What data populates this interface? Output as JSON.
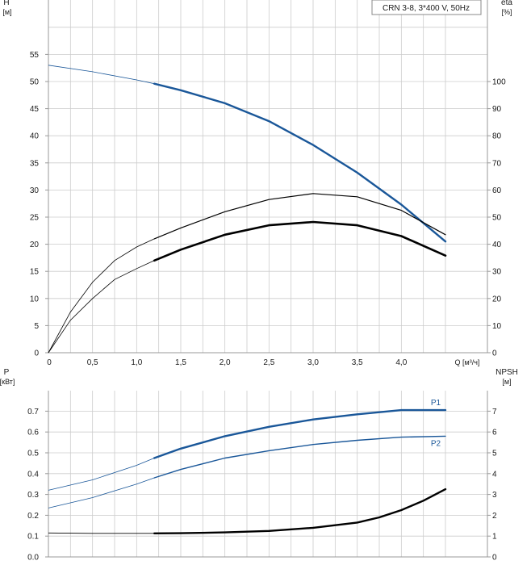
{
  "title_box": "CRN 3-8, 3*400 V, 50Hz",
  "colors": {
    "grid": "#cccccc",
    "frame": "#999999",
    "blue": "#1a5799",
    "black": "#000000",
    "text": "#1a1a1a"
  },
  "chart_data": [
    {
      "type": "line",
      "x_label": "Q [м³/ч]",
      "x_ticks": [
        "0",
        "0,5",
        "1,0",
        "1,5",
        "2,0",
        "2,5",
        "3,0",
        "3,5",
        "4,0"
      ],
      "xlim": [
        0,
        4.5
      ],
      "left_axis": {
        "label_line1": "H",
        "label_line2": "[м]",
        "ylim": [
          0,
          60
        ],
        "ticks": [
          "0",
          "5",
          "10",
          "15",
          "20",
          "25",
          "30",
          "35",
          "40",
          "45",
          "50",
          "55"
        ]
      },
      "right_axis": {
        "label_line1": "eta",
        "label_line2": "[%]",
        "ylim": [
          0,
          120
        ],
        "ticks": [
          "0",
          "10",
          "20",
          "30",
          "40",
          "50",
          "60",
          "70",
          "80",
          "90",
          "100"
        ]
      },
      "grid": true,
      "series": [
        {
          "name": "",
          "axis": "left",
          "color": "blue",
          "x_thin": [
            0,
            0.5,
            1.0,
            1.2
          ],
          "y_thin": [
            53.0,
            51.8,
            50.3,
            49.6
          ],
          "x_bold": [
            1.2,
            1.5,
            2.0,
            2.5,
            3.0,
            3.5,
            4.0,
            4.5
          ],
          "y_bold": [
            49.6,
            48.4,
            46.0,
            42.7,
            38.3,
            33.2,
            27.3,
            20.5
          ]
        },
        {
          "name": "",
          "axis": "right",
          "color": "black",
          "x_thin": [
            0,
            0.25,
            0.5,
            0.75,
            1.0,
            1.2
          ],
          "y_thin": [
            0,
            15,
            26,
            34,
            39,
            42
          ],
          "x_bold": [
            1.2,
            1.5,
            2.0,
            2.5,
            3.0,
            3.5,
            4.0,
            4.5
          ],
          "y_bold": [
            42,
            46,
            52,
            56.5,
            58.7,
            57.5,
            52.5,
            43.5
          ],
          "bold_width": 1.2
        },
        {
          "name": "",
          "axis": "right",
          "color": "black",
          "x_thin": [
            0,
            0.25,
            0.5,
            0.75,
            1.0,
            1.2
          ],
          "y_thin": [
            0,
            12,
            20,
            27,
            31,
            34
          ],
          "x_bold": [
            1.2,
            1.5,
            2.0,
            2.5,
            3.0,
            3.5,
            4.0,
            4.5
          ],
          "y_bold": [
            34,
            38,
            43.5,
            47,
            48.2,
            47,
            43,
            35.8
          ],
          "bold_width": 2.6
        }
      ]
    },
    {
      "type": "line",
      "xlim": [
        0,
        4.5
      ],
      "left_axis": {
        "label_line1": "P",
        "label_line2": "[кВт]",
        "ylim": [
          0,
          0.8
        ],
        "ticks": [
          "0.0",
          "0.1",
          "0.2",
          "0.3",
          "0.4",
          "0.5",
          "0.6",
          "0.7"
        ]
      },
      "right_axis": {
        "label_line1": "NPSH",
        "label_line2": "[м]",
        "ylim": [
          0,
          8
        ],
        "ticks": [
          "0",
          "1",
          "2",
          "3",
          "4",
          "5",
          "6",
          "7"
        ]
      },
      "grid": true,
      "series": [
        {
          "name": "P1",
          "axis": "left",
          "color": "blue",
          "x_thin": [
            0,
            0.5,
            1.0,
            1.2
          ],
          "y_thin": [
            0.32,
            0.37,
            0.44,
            0.475
          ],
          "x_bold": [
            1.2,
            1.5,
            2.0,
            2.5,
            3.0,
            3.5,
            4.0,
            4.5
          ],
          "y_bold": [
            0.475,
            0.52,
            0.58,
            0.625,
            0.66,
            0.685,
            0.705,
            0.705
          ],
          "bold_width": 2.4
        },
        {
          "name": "P2",
          "axis": "left",
          "color": "blue",
          "x_thin": [
            0,
            0.5,
            1.0,
            1.2
          ],
          "y_thin": [
            0.235,
            0.285,
            0.35,
            0.38
          ],
          "x_bold": [
            1.2,
            1.5,
            2.0,
            2.5,
            3.0,
            3.5,
            4.0,
            4.5
          ],
          "y_bold": [
            0.38,
            0.42,
            0.475,
            0.51,
            0.54,
            0.56,
            0.575,
            0.58
          ],
          "bold_width": 1.4
        },
        {
          "name": "",
          "axis": "right",
          "color": "black",
          "x_thin": [
            0,
            0.5,
            1.0,
            1.2
          ],
          "y_thin": [
            1.15,
            1.13,
            1.13,
            1.13
          ],
          "x_bold": [
            1.2,
            1.5,
            2.0,
            2.5,
            3.0,
            3.5,
            3.75,
            4.0,
            4.25,
            4.5
          ],
          "y_bold": [
            1.13,
            1.14,
            1.18,
            1.25,
            1.4,
            1.65,
            1.9,
            2.25,
            2.7,
            3.25
          ],
          "bold_width": 2.4
        }
      ]
    }
  ]
}
